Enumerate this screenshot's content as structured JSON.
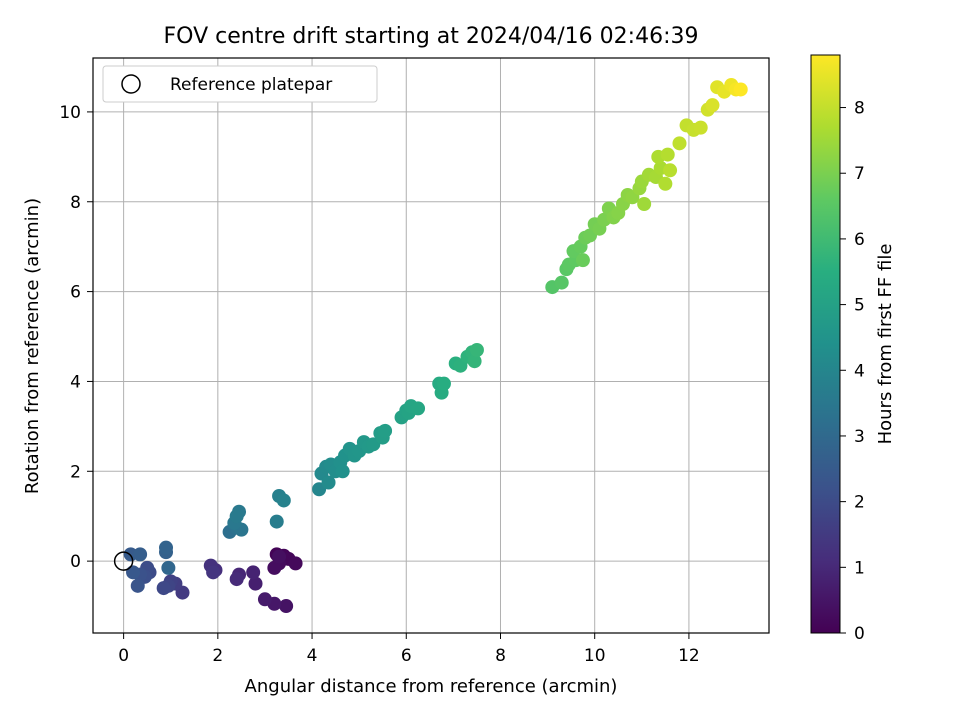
{
  "chart_data": {
    "type": "scatter",
    "title": "FOV centre drift starting at 2024/04/16 02:46:39",
    "xlabel": "Angular distance from reference (arcmin)",
    "ylabel": "Rotation from reference (arcmin)",
    "xlim": [
      -0.65,
      13.7
    ],
    "ylim": [
      -1.6,
      11.2
    ],
    "xticks": [
      0,
      2,
      4,
      6,
      8,
      10,
      12
    ],
    "yticks": [
      0,
      2,
      4,
      6,
      8,
      10
    ],
    "grid": true,
    "legend": {
      "position": "top-left",
      "entries": [
        "Reference platepar"
      ]
    },
    "reference_point": {
      "x": 0,
      "y": 0,
      "marker": "open-circle"
    },
    "colorbar": {
      "label": "Hours from first FF file",
      "colormap": "viridis",
      "range": [
        0,
        8.8
      ],
      "ticks": [
        0,
        1,
        2,
        3,
        4,
        5,
        6,
        7,
        8
      ]
    },
    "points": [
      {
        "x": 3.25,
        "y": 0.15,
        "h": 0.05
      },
      {
        "x": 3.4,
        "y": 0.12,
        "h": 0.1
      },
      {
        "x": 3.5,
        "y": 0.05,
        "h": 0.15
      },
      {
        "x": 3.65,
        "y": -0.05,
        "h": 0.2
      },
      {
        "x": 3.3,
        "y": -0.05,
        "h": 0.25
      },
      {
        "x": 3.2,
        "y": -0.15,
        "h": 0.3
      },
      {
        "x": 3.3,
        "y": 0.1,
        "h": 0.35
      },
      {
        "x": 3.45,
        "y": -1.0,
        "h": 0.45
      },
      {
        "x": 3.2,
        "y": -0.95,
        "h": 0.55
      },
      {
        "x": 3.0,
        "y": -0.85,
        "h": 0.65
      },
      {
        "x": 2.8,
        "y": -0.5,
        "h": 0.75
      },
      {
        "x": 2.75,
        "y": -0.25,
        "h": 0.85
      },
      {
        "x": 2.45,
        "y": -0.3,
        "h": 0.95
      },
      {
        "x": 2.4,
        "y": -0.4,
        "h": 1.05
      },
      {
        "x": 1.95,
        "y": -0.2,
        "h": 1.15
      },
      {
        "x": 1.85,
        "y": -0.1,
        "h": 1.25
      },
      {
        "x": 1.9,
        "y": -0.25,
        "h": 1.35
      },
      {
        "x": 1.25,
        "y": -0.7,
        "h": 1.5
      },
      {
        "x": 1.1,
        "y": -0.5,
        "h": 1.6
      },
      {
        "x": 1.0,
        "y": -0.45,
        "h": 1.7
      },
      {
        "x": 0.95,
        "y": -0.55,
        "h": 1.8
      },
      {
        "x": 0.85,
        "y": -0.6,
        "h": 1.9
      },
      {
        "x": 0.55,
        "y": -0.25,
        "h": 2.0
      },
      {
        "x": 0.5,
        "y": -0.15,
        "h": 2.05
      },
      {
        "x": 0.45,
        "y": -0.35,
        "h": 2.1
      },
      {
        "x": 0.35,
        "y": -0.3,
        "h": 2.2
      },
      {
        "x": 0.3,
        "y": -0.55,
        "h": 2.3
      },
      {
        "x": 0.2,
        "y": -0.25,
        "h": 2.4
      },
      {
        "x": 0.15,
        "y": 0.15,
        "h": 2.5
      },
      {
        "x": 0.35,
        "y": 0.15,
        "h": 2.6
      },
      {
        "x": 0.9,
        "y": 0.2,
        "h": 2.7
      },
      {
        "x": 0.9,
        "y": 0.3,
        "h": 2.8
      },
      {
        "x": 0.95,
        "y": -0.15,
        "h": 2.9
      },
      {
        "x": 2.25,
        "y": 0.65,
        "h": 3.2
      },
      {
        "x": 2.4,
        "y": 0.75,
        "h": 3.3
      },
      {
        "x": 2.5,
        "y": 0.7,
        "h": 3.4
      },
      {
        "x": 2.35,
        "y": 0.85,
        "h": 3.5
      },
      {
        "x": 2.45,
        "y": 1.1,
        "h": 3.55
      },
      {
        "x": 2.4,
        "y": 1.0,
        "h": 3.6
      },
      {
        "x": 3.25,
        "y": 0.88,
        "h": 3.7
      },
      {
        "x": 3.3,
        "y": 1.45,
        "h": 3.8
      },
      {
        "x": 3.4,
        "y": 1.35,
        "h": 3.85
      },
      {
        "x": 4.15,
        "y": 1.6,
        "h": 4.0
      },
      {
        "x": 4.2,
        "y": 1.95,
        "h": 4.1
      },
      {
        "x": 4.3,
        "y": 2.1,
        "h": 4.15
      },
      {
        "x": 4.35,
        "y": 1.75,
        "h": 4.2
      },
      {
        "x": 4.4,
        "y": 2.15,
        "h": 4.25
      },
      {
        "x": 4.5,
        "y": 2.0,
        "h": 4.3
      },
      {
        "x": 4.6,
        "y": 2.2,
        "h": 4.35
      },
      {
        "x": 4.65,
        "y": 2.0,
        "h": 4.4
      },
      {
        "x": 4.7,
        "y": 2.35,
        "h": 4.45
      },
      {
        "x": 4.8,
        "y": 2.5,
        "h": 4.5
      },
      {
        "x": 4.9,
        "y": 2.35,
        "h": 4.55
      },
      {
        "x": 5.0,
        "y": 2.45,
        "h": 4.6
      },
      {
        "x": 5.1,
        "y": 2.65,
        "h": 4.65
      },
      {
        "x": 5.2,
        "y": 2.55,
        "h": 4.7
      },
      {
        "x": 5.3,
        "y": 2.6,
        "h": 4.75
      },
      {
        "x": 5.45,
        "y": 2.85,
        "h": 4.8
      },
      {
        "x": 5.5,
        "y": 2.75,
        "h": 4.85
      },
      {
        "x": 5.55,
        "y": 2.9,
        "h": 4.9
      },
      {
        "x": 5.9,
        "y": 3.2,
        "h": 5.0
      },
      {
        "x": 6.0,
        "y": 3.35,
        "h": 5.05
      },
      {
        "x": 6.05,
        "y": 3.3,
        "h": 5.1
      },
      {
        "x": 6.1,
        "y": 3.45,
        "h": 5.15
      },
      {
        "x": 6.25,
        "y": 3.4,
        "h": 5.2
      },
      {
        "x": 6.7,
        "y": 3.95,
        "h": 5.35
      },
      {
        "x": 6.75,
        "y": 3.75,
        "h": 5.4
      },
      {
        "x": 6.8,
        "y": 3.95,
        "h": 5.45
      },
      {
        "x": 7.05,
        "y": 4.4,
        "h": 5.55
      },
      {
        "x": 7.15,
        "y": 4.35,
        "h": 5.6
      },
      {
        "x": 7.3,
        "y": 4.55,
        "h": 5.65
      },
      {
        "x": 7.4,
        "y": 4.65,
        "h": 5.7
      },
      {
        "x": 7.45,
        "y": 4.45,
        "h": 5.75
      },
      {
        "x": 7.5,
        "y": 4.7,
        "h": 5.8
      },
      {
        "x": 9.1,
        "y": 6.1,
        "h": 6.4
      },
      {
        "x": 9.3,
        "y": 6.2,
        "h": 6.45
      },
      {
        "x": 9.4,
        "y": 6.5,
        "h": 6.5
      },
      {
        "x": 9.45,
        "y": 6.6,
        "h": 6.55
      },
      {
        "x": 9.6,
        "y": 6.7,
        "h": 6.6
      },
      {
        "x": 9.55,
        "y": 6.9,
        "h": 6.65
      },
      {
        "x": 9.7,
        "y": 7.0,
        "h": 6.7
      },
      {
        "x": 9.75,
        "y": 6.7,
        "h": 6.75
      },
      {
        "x": 9.8,
        "y": 7.2,
        "h": 6.8
      },
      {
        "x": 9.9,
        "y": 7.25,
        "h": 6.85
      },
      {
        "x": 10.0,
        "y": 7.5,
        "h": 6.9
      },
      {
        "x": 10.1,
        "y": 7.4,
        "h": 6.95
      },
      {
        "x": 10.2,
        "y": 7.6,
        "h": 7.0
      },
      {
        "x": 10.3,
        "y": 7.85,
        "h": 7.05
      },
      {
        "x": 10.4,
        "y": 7.65,
        "h": 7.1
      },
      {
        "x": 10.5,
        "y": 7.75,
        "h": 7.15
      },
      {
        "x": 10.6,
        "y": 7.95,
        "h": 7.2
      },
      {
        "x": 10.7,
        "y": 8.15,
        "h": 7.25
      },
      {
        "x": 10.8,
        "y": 8.1,
        "h": 7.3
      },
      {
        "x": 10.95,
        "y": 8.3,
        "h": 7.4
      },
      {
        "x": 11.0,
        "y": 8.45,
        "h": 7.45
      },
      {
        "x": 11.05,
        "y": 7.95,
        "h": 7.5
      },
      {
        "x": 11.15,
        "y": 8.6,
        "h": 7.55
      },
      {
        "x": 11.3,
        "y": 8.55,
        "h": 7.6
      },
      {
        "x": 11.4,
        "y": 8.75,
        "h": 7.65
      },
      {
        "x": 11.35,
        "y": 9.0,
        "h": 7.7
      },
      {
        "x": 11.5,
        "y": 8.4,
        "h": 7.75
      },
      {
        "x": 11.55,
        "y": 9.05,
        "h": 7.8
      },
      {
        "x": 11.6,
        "y": 8.7,
        "h": 7.85
      },
      {
        "x": 11.8,
        "y": 9.3,
        "h": 7.95
      },
      {
        "x": 11.95,
        "y": 9.7,
        "h": 8.0
      },
      {
        "x": 12.1,
        "y": 9.6,
        "h": 8.05
      },
      {
        "x": 12.25,
        "y": 9.65,
        "h": 8.1
      },
      {
        "x": 12.4,
        "y": 10.05,
        "h": 8.2
      },
      {
        "x": 12.5,
        "y": 10.15,
        "h": 8.3
      },
      {
        "x": 12.6,
        "y": 10.55,
        "h": 8.4
      },
      {
        "x": 12.75,
        "y": 10.45,
        "h": 8.5
      },
      {
        "x": 12.9,
        "y": 10.6,
        "h": 8.6
      },
      {
        "x": 13.0,
        "y": 10.5,
        "h": 8.7
      },
      {
        "x": 13.1,
        "y": 10.5,
        "h": 8.8
      }
    ]
  }
}
